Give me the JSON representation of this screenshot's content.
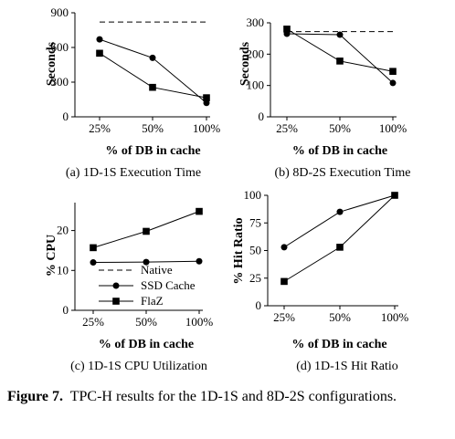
{
  "figure": {
    "caption_label": "Figure 7.",
    "caption_text": "TPC-H results for the 1D-1S and 8D-2S configurations."
  },
  "legend": [
    "Native",
    "SSD Cache",
    "FlaZ"
  ],
  "chart_data": [
    {
      "id": "a",
      "type": "line",
      "subtitle": "(a)  1D-1S Execution Time",
      "xlabel": "% of DB in cache",
      "ylabel": "Seconds",
      "categories": [
        "25%",
        "50%",
        "100%"
      ],
      "yticks": [
        0,
        300,
        600,
        900
      ],
      "ylim": [
        0,
        900
      ],
      "series": [
        {
          "name": "Native",
          "style": "dashed",
          "values": [
            820,
            820,
            820
          ]
        },
        {
          "name": "SSD Cache",
          "marker": "circle",
          "values": [
            670,
            510,
            120
          ]
        },
        {
          "name": "FlaZ",
          "marker": "square",
          "values": [
            550,
            255,
            165
          ]
        }
      ]
    },
    {
      "id": "b",
      "type": "line",
      "subtitle": "(b)  8D-2S Execution Time",
      "xlabel": "% of DB in cache",
      "ylabel": "Seconds",
      "categories": [
        "25%",
        "50%",
        "100%"
      ],
      "yticks": [
        0,
        100,
        200,
        300
      ],
      "ylim": [
        0,
        300
      ],
      "series": [
        {
          "name": "Native",
          "style": "dashed",
          "values": [
            272,
            272,
            272
          ]
        },
        {
          "name": "SSD Cache",
          "marker": "circle",
          "values": [
            265,
            262,
            108
          ]
        },
        {
          "name": "FlaZ",
          "marker": "square",
          "values": [
            280,
            178,
            145
          ]
        }
      ]
    },
    {
      "id": "c",
      "type": "line",
      "subtitle": "(c)  1D-1S CPU Utilization",
      "xlabel": "% of DB in cache",
      "ylabel": "% CPU",
      "categories": [
        "25%",
        "50%",
        "100%"
      ],
      "yticks": [
        0,
        10,
        20
      ],
      "ylim": [
        0,
        27
      ],
      "legend_position": "inside-bottom",
      "series": [
        {
          "name": "SSD Cache",
          "marker": "circle",
          "values": [
            12.0,
            12.1,
            12.3
          ]
        },
        {
          "name": "FlaZ",
          "marker": "square",
          "values": [
            15.7,
            19.8,
            24.8
          ]
        }
      ]
    },
    {
      "id": "d",
      "type": "line",
      "subtitle": "(d)  1D-1S Hit Ratio",
      "xlabel": "% of DB in cache",
      "ylabel": "% Hit Ratio",
      "categories": [
        "25%",
        "50%",
        "100%"
      ],
      "yticks": [
        0,
        25,
        50,
        75,
        100
      ],
      "ylim": [
        0,
        100
      ],
      "series": [
        {
          "name": "SSD Cache",
          "marker": "circle",
          "values": [
            53,
            85,
            100
          ]
        },
        {
          "name": "FlaZ",
          "marker": "square",
          "values": [
            22,
            53,
            100
          ]
        }
      ]
    }
  ]
}
